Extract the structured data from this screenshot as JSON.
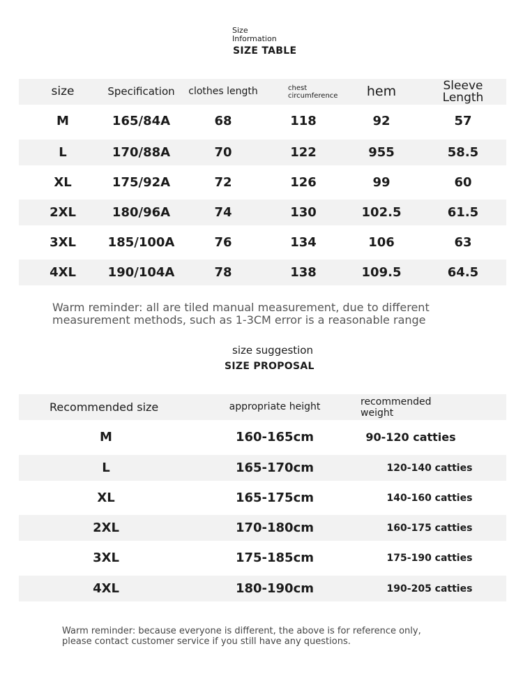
{
  "size_table": {
    "subtitle_line1": "Size",
    "subtitle_line2": "Information",
    "title": "SIZE TABLE",
    "headers": [
      "size",
      "Specification",
      "clothes length",
      "chest circumference",
      "hem",
      "Sleeve Length"
    ],
    "rows": [
      [
        "M",
        "165/84A",
        "68",
        "118",
        "92",
        "57"
      ],
      [
        "L",
        "170/88A",
        "70",
        "122",
        "955",
        "58.5"
      ],
      [
        "XL",
        "175/92A",
        "72",
        "126",
        "99",
        "60"
      ],
      [
        "2XL",
        "180/96A",
        "74",
        "130",
        "102.5",
        "61.5"
      ],
      [
        "3XL",
        "185/100A",
        "76",
        "134",
        "106",
        "63"
      ],
      [
        "4XL",
        "190/104A",
        "78",
        "138",
        "109.5",
        "64.5"
      ]
    ],
    "reminder_line1": "Warm reminder: all are tiled manual measurement, due to different",
    "reminder_line2": "measurement methods, such as 1-3CM error is a reasonable range"
  },
  "size_proposal": {
    "subtitle": "size suggestion",
    "title": "SIZE PROPOSAL",
    "headers": [
      "Recommended size",
      "appropriate height",
      "recommended weight"
    ],
    "rows": [
      [
        "M",
        "160-165cm",
        "90-120 catties"
      ],
      [
        "L",
        "165-170cm",
        "120-140 catties"
      ],
      [
        "XL",
        "165-175cm",
        "140-160 catties"
      ],
      [
        "2XL",
        "170-180cm",
        "160-175 catties"
      ],
      [
        "3XL",
        "175-185cm",
        "175-190 catties"
      ],
      [
        "4XL",
        "180-190cm",
        "190-205 catties"
      ]
    ],
    "reminder_line1": "Warm reminder: because everyone is different, the above is for reference only,",
    "reminder_line2": "please contact customer service if you still have any questions."
  },
  "colors": {
    "band": "#f2f2f2",
    "text": "#1a1a1a"
  }
}
